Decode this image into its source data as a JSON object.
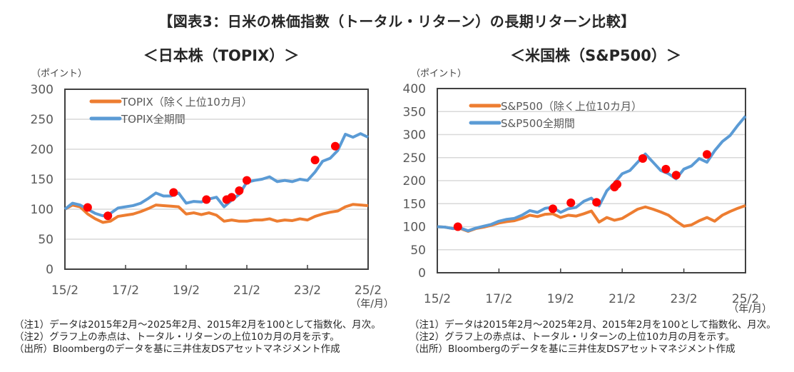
{
  "title": "【図表3：日米の株価指数（トータル・リターン）の長期リターン比較】",
  "footnotes": [
    "（注1）データは2015年2月～2025年2月、2015年2月を100として指数化、月次。",
    "（注2）グラフ上の赤点は、トータル・リターンの上位10カ月の月を示す。",
    "（出所）Bloombergのデータを基に三井住友DSアセットマネジメント作成"
  ],
  "colors": {
    "excluded_series": "#ED7D31",
    "full_series": "#5B9BD5",
    "marker": "#FF0000",
    "gridline": "#D9D9D9",
    "axis": "#404040"
  },
  "chart_data": [
    {
      "type": "line",
      "title": "＜日本株（TOPIX）＞",
      "ylabel": "（ポイント）",
      "xlabel": "（年/月）",
      "ylim": [
        0,
        300
      ],
      "yticks": [
        0,
        50,
        100,
        150,
        200,
        250,
        300
      ],
      "xlim": [
        "2015/02",
        "2025/02"
      ],
      "xtick_labels": [
        "15/2",
        "17/2",
        "19/2",
        "21/2",
        "23/2",
        "25/2"
      ],
      "grid": true,
      "legend_position": "top-left",
      "x": [
        "2015/02",
        "2015/05",
        "2015/08",
        "2015/11",
        "2016/02",
        "2016/05",
        "2016/08",
        "2016/11",
        "2017/02",
        "2017/05",
        "2017/08",
        "2017/11",
        "2018/02",
        "2018/05",
        "2018/08",
        "2018/11",
        "2019/02",
        "2019/05",
        "2019/08",
        "2019/11",
        "2020/02",
        "2020/05",
        "2020/08",
        "2020/11",
        "2021/02",
        "2021/05",
        "2021/08",
        "2021/11",
        "2022/02",
        "2022/05",
        "2022/08",
        "2022/11",
        "2023/02",
        "2023/05",
        "2023/08",
        "2023/11",
        "2024/02",
        "2024/05",
        "2024/08",
        "2024/11",
        "2025/02"
      ],
      "series": [
        {
          "name": "TOPIX（除く上位10カ月）",
          "values": [
            100,
            107,
            104,
            92,
            84,
            78,
            80,
            88,
            90,
            92,
            96,
            101,
            107,
            106,
            105,
            104,
            92,
            94,
            91,
            94,
            90,
            80,
            82,
            80,
            80,
            82,
            82,
            84,
            80,
            82,
            81,
            84,
            82,
            88,
            92,
            95,
            97,
            104,
            108,
            107,
            106
          ]
        },
        {
          "name": "TOPIX全期間",
          "values": [
            100,
            110,
            107,
            100,
            93,
            89,
            93,
            102,
            104,
            106,
            110,
            118,
            127,
            122,
            122,
            127,
            110,
            113,
            112,
            117,
            120,
            104,
            115,
            125,
            145,
            148,
            150,
            154,
            146,
            148,
            146,
            150,
            148,
            162,
            180,
            185,
            198,
            225,
            220,
            226,
            220
          ]
        }
      ],
      "markers": {
        "name": "上位10カ月",
        "points": [
          {
            "x": "2015/11",
            "y": 103
          },
          {
            "x": "2016/07",
            "y": 89
          },
          {
            "x": "2018/09",
            "y": 128
          },
          {
            "x": "2019/10",
            "y": 116
          },
          {
            "x": "2020/06",
            "y": 116
          },
          {
            "x": "2020/08",
            "y": 120
          },
          {
            "x": "2020/11",
            "y": 131
          },
          {
            "x": "2021/02",
            "y": 148
          },
          {
            "x": "2023/05",
            "y": 182
          },
          {
            "x": "2024/01",
            "y": 205
          }
        ]
      }
    },
    {
      "type": "line",
      "title": "＜米国株（S&P500）＞",
      "ylabel": "（ポイント）",
      "xlabel": "（年/月）",
      "ylim": [
        0,
        400
      ],
      "yticks": [
        0,
        50,
        100,
        150,
        200,
        250,
        300,
        350,
        400
      ],
      "xlim": [
        "2015/02",
        "2025/02"
      ],
      "xtick_labels": [
        "15/2",
        "17/2",
        "19/2",
        "21/2",
        "23/2",
        "25/2"
      ],
      "grid": true,
      "legend_position": "top-left",
      "x": [
        "2015/02",
        "2015/05",
        "2015/08",
        "2015/11",
        "2016/02",
        "2016/05",
        "2016/08",
        "2016/11",
        "2017/02",
        "2017/05",
        "2017/08",
        "2017/11",
        "2018/02",
        "2018/05",
        "2018/08",
        "2018/11",
        "2019/02",
        "2019/05",
        "2019/08",
        "2019/11",
        "2020/02",
        "2020/05",
        "2020/08",
        "2020/11",
        "2021/02",
        "2021/05",
        "2021/08",
        "2021/11",
        "2022/02",
        "2022/05",
        "2022/08",
        "2022/11",
        "2023/02",
        "2023/05",
        "2023/08",
        "2023/11",
        "2024/02",
        "2024/05",
        "2024/08",
        "2024/11",
        "2025/02"
      ],
      "series": [
        {
          "name": "S&P500（除く上位10カ月）",
          "values": [
            100,
            99,
            96,
            96,
            90,
            96,
            99,
            103,
            108,
            111,
            113,
            118,
            125,
            122,
            127,
            128,
            120,
            125,
            123,
            128,
            134,
            110,
            120,
            114,
            118,
            128,
            138,
            143,
            138,
            132,
            125,
            112,
            101,
            104,
            113,
            120,
            112,
            125,
            133,
            140,
            146
          ]
        },
        {
          "name": "S&P500全期間",
          "values": [
            100,
            99,
            96,
            97,
            91,
            97,
            101,
            105,
            112,
            116,
            118,
            125,
            135,
            131,
            140,
            142,
            131,
            139,
            142,
            155,
            162,
            145,
            178,
            195,
            215,
            222,
            240,
            258,
            240,
            222,
            215,
            204,
            225,
            232,
            248,
            240,
            265,
            285,
            298,
            320,
            340
          ]
        }
      ],
      "markers": {
        "name": "上位10カ月",
        "points": [
          {
            "x": "2015/10",
            "y": 100
          },
          {
            "x": "2018/11",
            "y": 139
          },
          {
            "x": "2019/06",
            "y": 152
          },
          {
            "x": "2020/04",
            "y": 153
          },
          {
            "x": "2020/11",
            "y": 186
          },
          {
            "x": "2020/12",
            "y": 192
          },
          {
            "x": "2021/10",
            "y": 248
          },
          {
            "x": "2022/07",
            "y": 225
          },
          {
            "x": "2022/11",
            "y": 212
          },
          {
            "x": "2023/11",
            "y": 257
          }
        ]
      }
    }
  ]
}
